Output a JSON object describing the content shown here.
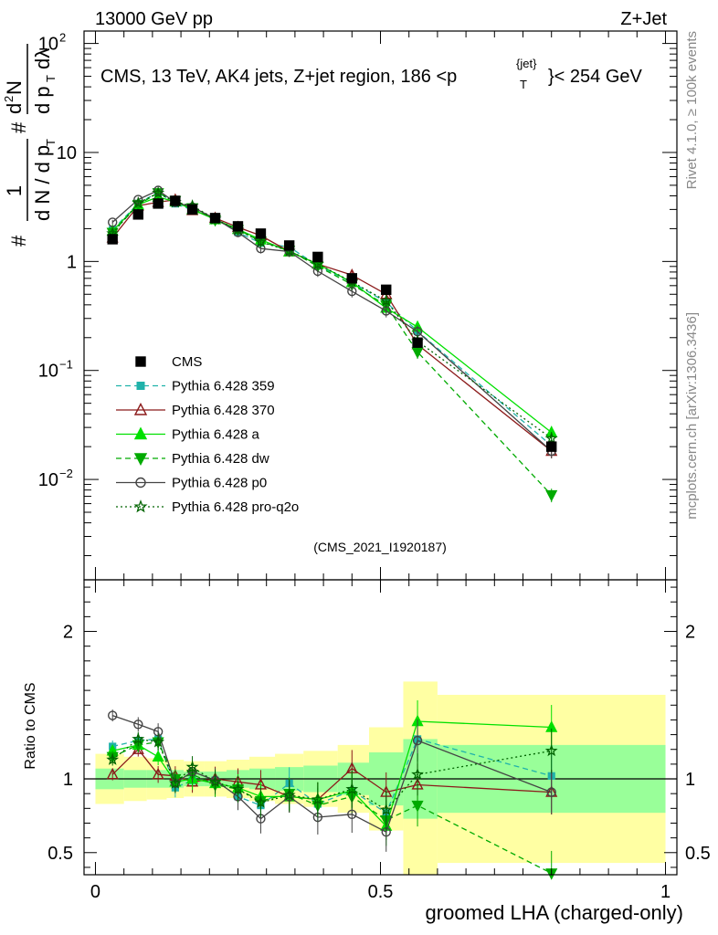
{
  "header": {
    "left": "13000 GeV pp",
    "right": "Z+Jet"
  },
  "title": {
    "main": "CMS, 13 TeV, AK4 jets, Z+jet region, 186 <p",
    "sup": "{jet}",
    "sub": "T",
    "tail": "}< 254 GeV"
  },
  "ylabel": {
    "hash_top": "#",
    "one": "1",
    "hash_bottom": "#",
    "dN": "d N / d p",
    "T": "T",
    "dN2": "d",
    "N2": "N",
    "two": "2",
    "dpT": "d p",
    "dlambda": "dλ"
  },
  "side": {
    "rivet": "Rivet 4.1.0, ≥ 100k events",
    "mcplots": "mcplots.cern.ch [arXiv:1306.3436]"
  },
  "analysis_id": "(CMS_2021_I1920187)",
  "ratio_ylabel": "Ratio to CMS",
  "xlabel": "groomed LHA (charged-only)",
  "chart_data": {
    "type": "line",
    "x_axis": {
      "label": "groomed LHA (charged-only)",
      "range": [
        -0.02,
        1.02
      ],
      "ticks": [
        0,
        0.5,
        1
      ],
      "tick_labels": [
        "0",
        "0.5",
        "1"
      ]
    },
    "main_y_axis": {
      "scale": "log",
      "range": [
        0.0012,
        130
      ],
      "tick_labels": [
        "10^-2",
        "10^-1",
        "1",
        "10",
        "10^2"
      ]
    },
    "ratio_y_axis": {
      "range": [
        0.35,
        2.35
      ],
      "ticks": [
        0.5,
        1,
        2
      ],
      "tick_labels": [
        "0.5",
        "1",
        "2"
      ]
    },
    "x": [
      0.03,
      0.075,
      0.11,
      0.14,
      0.17,
      0.21,
      0.25,
      0.29,
      0.34,
      0.39,
      0.45,
      0.51,
      0.565,
      0.8
    ],
    "bin_edges": [
      0.0,
      0.05,
      0.09,
      0.125,
      0.155,
      0.19,
      0.23,
      0.27,
      0.315,
      0.365,
      0.425,
      0.48,
      0.54,
      0.6,
      1.0
    ],
    "band_inner": [
      0.07,
      0.06,
      0.06,
      0.06,
      0.05,
      0.05,
      0.06,
      0.07,
      0.08,
      0.09,
      0.11,
      0.18,
      0.27,
      0.23
    ],
    "band_outer": [
      0.17,
      0.15,
      0.14,
      0.13,
      0.12,
      0.12,
      0.13,
      0.15,
      0.17,
      0.19,
      0.23,
      0.35,
      0.66,
      0.57
    ],
    "data": {
      "name": "CMS",
      "values": [
        1.6,
        2.7,
        3.4,
        3.6,
        3.0,
        2.5,
        2.1,
        1.8,
        1.4,
        1.1,
        0.7,
        0.55,
        0.18,
        0.02
      ]
    },
    "series": [
      {
        "name": "Pythia 6.428 359",
        "color": "#20b2aa",
        "dash": "6,4",
        "marker": "square",
        "fill": true,
        "ratio": [
          1.22,
          1.26,
          1.27,
          0.94,
          0.99,
          0.99,
          0.88,
          0.82,
          0.97,
          0.83,
          0.92,
          0.77,
          1.27,
          1.02
        ]
      },
      {
        "name": "Pythia 6.428 370",
        "color": "#8b1a1a",
        "dash": "",
        "marker": "triangle",
        "fill": false,
        "ratio": [
          1.03,
          1.2,
          1.03,
          1.02,
          0.98,
          1.0,
          0.98,
          0.96,
          0.88,
          0.86,
          1.07,
          0.91,
          0.96,
          0.91
        ]
      },
      {
        "name": "Pythia 6.428 a",
        "color": "#00e000",
        "dash": "",
        "marker": "triangle",
        "fill": true,
        "ratio": [
          1.19,
          1.23,
          1.15,
          0.98,
          1.0,
          0.97,
          0.94,
          0.88,
          0.88,
          0.86,
          0.92,
          0.68,
          1.39,
          1.35
        ]
      },
      {
        "name": "Pythia 6.428 dw",
        "color": "#00aa00",
        "dash": "6,4",
        "marker": "triangledown",
        "fill": true,
        "ratio": [
          1.15,
          1.23,
          1.25,
          1.0,
          1.03,
          0.96,
          0.93,
          0.85,
          0.9,
          0.82,
          0.88,
          0.72,
          0.82,
          0.36
        ]
      },
      {
        "name": "Pythia 6.428 p0",
        "color": "#444444",
        "dash": "",
        "marker": "circle",
        "fill": false,
        "ratio": [
          1.43,
          1.37,
          1.32,
          0.97,
          1.05,
          0.99,
          0.88,
          0.73,
          0.88,
          0.74,
          0.76,
          0.64,
          1.26,
          0.91
        ]
      },
      {
        "name": "Pythia 6.428 pro-q2o",
        "color": "#006400",
        "dash": "2,3",
        "marker": "star",
        "fill": false,
        "ratio": [
          1.13,
          1.27,
          1.25,
          0.97,
          1.08,
          0.98,
          0.93,
          0.84,
          0.89,
          0.86,
          0.93,
          0.79,
          1.03,
          1.19
        ]
      }
    ]
  }
}
